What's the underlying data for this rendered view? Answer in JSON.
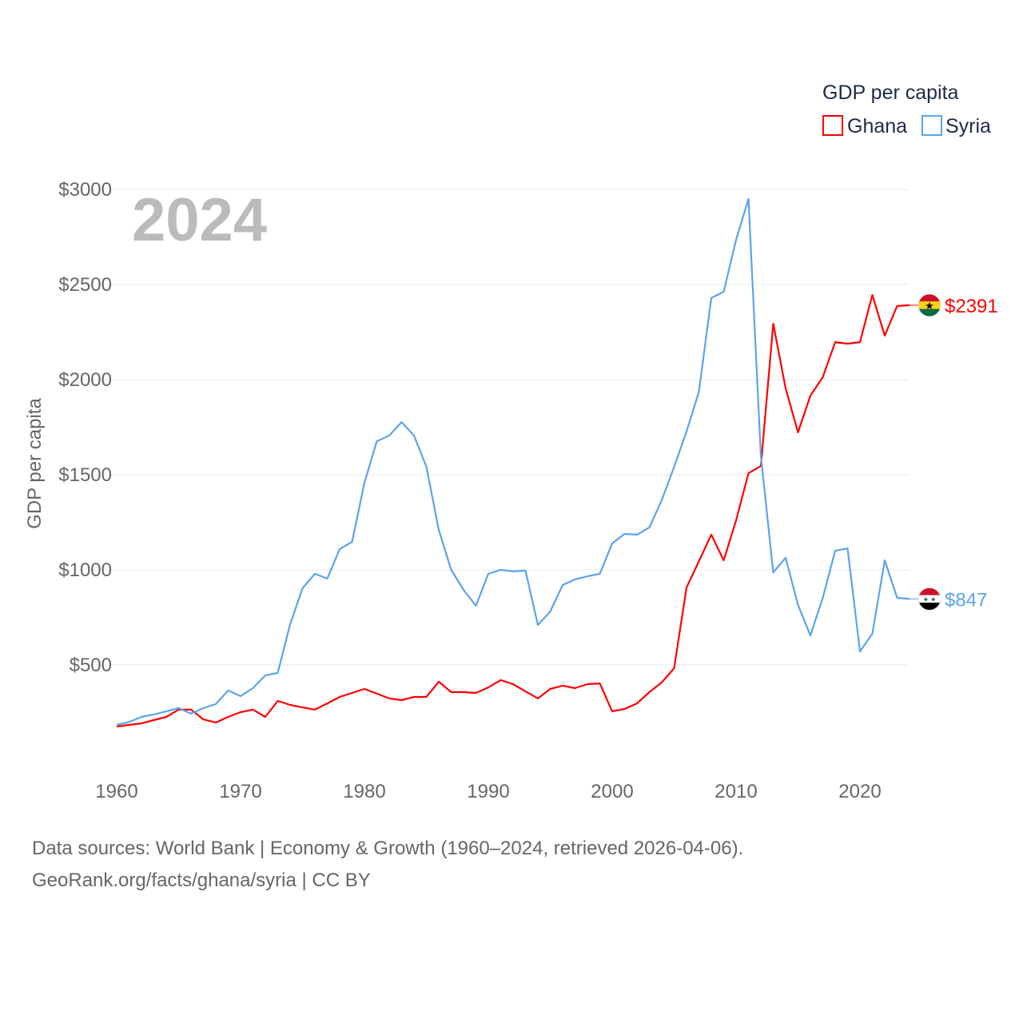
{
  "chart_data": {
    "type": "line",
    "title": "GDP per capita",
    "ylabel": "GDP per capita",
    "xlabel": "",
    "year_label": "2024",
    "ylim": [
      0,
      3000
    ],
    "xlim": [
      1960,
      2024
    ],
    "y_ticks": [
      500,
      1000,
      1500,
      2000,
      2500,
      3000
    ],
    "y_tick_labels": [
      "$500",
      "$1000",
      "$1500",
      "$2000",
      "$2500",
      "$3000"
    ],
    "x_ticks": [
      1960,
      1970,
      1980,
      1990,
      2000,
      2010,
      2020
    ],
    "x_tick_labels": [
      "1960",
      "1970",
      "1980",
      "1990",
      "2000",
      "2010",
      "2020"
    ],
    "grid": true,
    "legend_position": "top-right",
    "x": [
      1960,
      1961,
      1962,
      1963,
      1964,
      1965,
      1966,
      1967,
      1968,
      1969,
      1970,
      1971,
      1972,
      1973,
      1974,
      1975,
      1976,
      1977,
      1978,
      1979,
      1980,
      1981,
      1982,
      1983,
      1984,
      1985,
      1986,
      1987,
      1988,
      1989,
      1990,
      1991,
      1992,
      1993,
      1994,
      1995,
      1996,
      1997,
      1998,
      1999,
      2000,
      2001,
      2002,
      2003,
      2004,
      2005,
      2006,
      2007,
      2008,
      2009,
      2010,
      2011,
      2012,
      2013,
      2014,
      2015,
      2016,
      2017,
      2018,
      2019,
      2020,
      2021,
      2022,
      2023,
      2024
    ],
    "series": [
      {
        "name": "Ghana",
        "color": "#ff0000",
        "end_label": "$2391",
        "flag": "ghana-flag",
        "values": [
          176,
          185,
          193,
          210,
          227,
          265,
          265,
          214,
          197,
          227,
          252,
          265,
          227,
          311,
          290,
          277,
          265,
          298,
          332,
          353,
          374,
          349,
          324,
          315,
          332,
          332,
          412,
          357,
          357,
          353,
          382,
          420,
          399,
          361,
          324,
          374,
          391,
          378,
          399,
          403,
          256,
          269,
          298,
          357,
          408,
          483,
          907,
          1046,
          1185,
          1050,
          1260,
          1508,
          1546,
          2294,
          1954,
          1723,
          1916,
          2013,
          2197,
          2189,
          2197,
          2445,
          2231,
          2387,
          2391
        ]
      },
      {
        "name": "Syria",
        "color": "#5ba4ea",
        "end_label": "$847",
        "flag": "syria-flag",
        "values": [
          185,
          200,
          227,
          240,
          256,
          273,
          244,
          273,
          294,
          366,
          336,
          378,
          445,
          458,
          714,
          903,
          979,
          954,
          1109,
          1147,
          1458,
          1676,
          1706,
          1777,
          1706,
          1542,
          1210,
          1000,
          895,
          811,
          979,
          1000,
          992,
          996,
          710,
          781,
          920,
          950,
          966,
          979,
          1139,
          1189,
          1185,
          1223,
          1366,
          1542,
          1727,
          1937,
          2429,
          2462,
          2735,
          2950,
          1600,
          987,
          1063,
          815,
          655,
          853,
          1100,
          1113,
          571,
          664,
          1050,
          853,
          847
        ]
      }
    ]
  },
  "footer": {
    "line1": "Data sources: World Bank | Economy & Growth (1960–2024, retrieved 2026-04-06).",
    "line2": "GeoRank.org/facts/ghana/syria | CC BY"
  }
}
